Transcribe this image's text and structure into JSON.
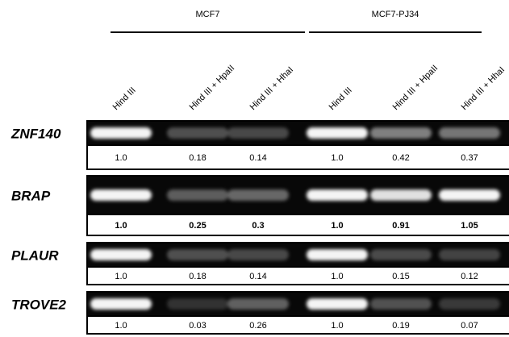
{
  "groups": [
    {
      "label": "MCF7"
    },
    {
      "label": "MCF7-PJ34"
    }
  ],
  "lanes": [
    "Hind III",
    "Hind III + HpaII",
    "Hind III + HhaI",
    "Hind III",
    "Hind III + HpaII",
    "Hind III + HhaI"
  ],
  "rows": [
    {
      "gene": "ZNF140",
      "bold": false,
      "values": [
        "1.0",
        "0.18",
        "0.14",
        "1.0",
        "0.42",
        "0.37"
      ]
    },
    {
      "gene": "BRAP",
      "bold": true,
      "values": [
        "1.0",
        "0.25",
        "0.3",
        "1.0",
        "0.91",
        "1.05"
      ]
    },
    {
      "gene": "PLAUR",
      "bold": false,
      "values": [
        "1.0",
        "0.18",
        "0.14",
        "1.0",
        "0.15",
        "0.12"
      ]
    },
    {
      "gene": "TROVE2",
      "bold": false,
      "values": [
        "1.0",
        "0.03",
        "0.26",
        "1.0",
        "0.19",
        "0.07"
      ]
    }
  ]
}
